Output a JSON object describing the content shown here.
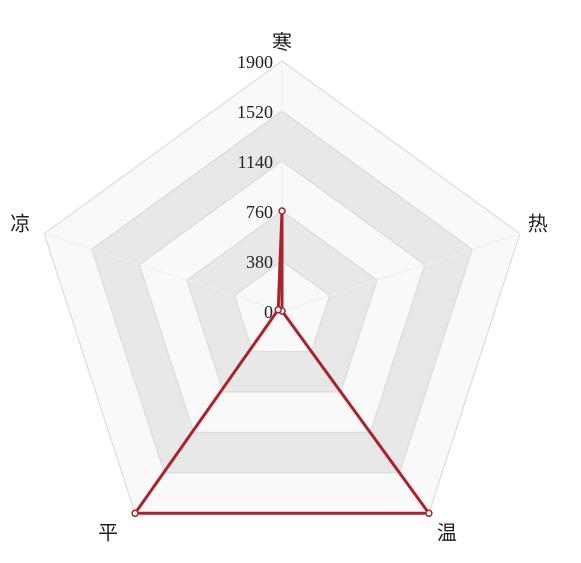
{
  "chart_data": {
    "type": "radar",
    "title": "",
    "axes": [
      "寒",
      "热",
      "温",
      "平",
      "凉"
    ],
    "tick_labels": [
      "0",
      "380",
      "760",
      "1140",
      "1520",
      "1900"
    ],
    "rmax": 1900,
    "series": [
      {
        "values": [
          760,
          0,
          1900,
          1900,
          30
        ],
        "color": "#a8232d"
      }
    ],
    "grid": true,
    "grid_colors": {
      "band_light": "#f9f9f9",
      "band_dark": "#e8e8e8",
      "line": "#dcdcdc"
    }
  }
}
